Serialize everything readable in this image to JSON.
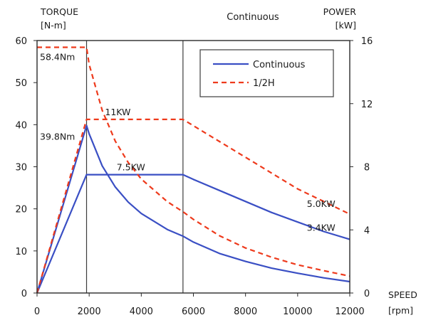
{
  "chart_data": {
    "type": "line",
    "title": "Continuous",
    "x_axis": {
      "label_line1": "SPEED",
      "label_line2": "[rpm]",
      "range": [
        0,
        12000
      ],
      "ticks": [
        "0",
        "2000",
        "4000",
        "6000",
        "8000",
        "10000",
        "12000"
      ],
      "tick_values": [
        0,
        2000,
        4000,
        6000,
        8000,
        10000,
        12000
      ]
    },
    "y_left": {
      "label_line1": "TORQUE",
      "label_line2": "[N-m]",
      "range": [
        0,
        60
      ],
      "ticks": [
        "0",
        "10",
        "20",
        "30",
        "40",
        "50",
        "60"
      ],
      "tick_values": [
        0,
        10,
        20,
        30,
        40,
        50,
        60
      ]
    },
    "y_right": {
      "label_line1": "POWER",
      "label_line2": "[kW]",
      "range": [
        0,
        16
      ],
      "ticks": [
        "0",
        "4",
        "8",
        "12",
        "16"
      ],
      "tick_values": [
        0,
        4,
        8,
        12,
        16
      ]
    },
    "grid": false,
    "legend": {
      "position": "top-right",
      "entries": [
        "Continuous",
        "1/2H"
      ]
    },
    "vertical_lines": [
      1900,
      5600
    ],
    "series": [
      {
        "name": "Continuous",
        "kind": "torque",
        "axis": "left",
        "color": "#3a4fc4",
        "dash": "solid",
        "points": [
          [
            0,
            0
          ],
          [
            1900,
            39.8
          ],
          [
            2000,
            37.8
          ],
          [
            2500,
            30.2
          ],
          [
            3000,
            25.2
          ],
          [
            3500,
            21.6
          ],
          [
            4000,
            18.9
          ],
          [
            5000,
            15.1
          ],
          [
            5600,
            13.5
          ],
          [
            6000,
            12.1
          ],
          [
            7000,
            9.4
          ],
          [
            8000,
            7.5
          ],
          [
            9000,
            5.9
          ],
          [
            10000,
            4.7
          ],
          [
            11000,
            3.6
          ],
          [
            12000,
            2.7
          ]
        ]
      },
      {
        "name": "Continuous",
        "kind": "power",
        "axis": "right",
        "color": "#3a4fc4",
        "dash": "solid",
        "points": [
          [
            0,
            0
          ],
          [
            1900,
            7.5
          ],
          [
            5600,
            7.5
          ],
          [
            6000,
            7.2
          ],
          [
            7000,
            6.5
          ],
          [
            8000,
            5.8
          ],
          [
            9000,
            5.1
          ],
          [
            10000,
            4.5
          ],
          [
            11000,
            3.9
          ],
          [
            12000,
            3.4
          ]
        ]
      },
      {
        "name": "1/2H",
        "kind": "torque",
        "axis": "left",
        "color": "#ee3a1c",
        "dash": "dashed",
        "points": [
          [
            0,
            58.4
          ],
          [
            1900,
            58.4
          ],
          [
            2000,
            54.3
          ],
          [
            2500,
            43.4
          ],
          [
            3000,
            36.1
          ],
          [
            3500,
            31.0
          ],
          [
            4000,
            27.1
          ],
          [
            5000,
            21.7
          ],
          [
            5600,
            19.3
          ],
          [
            6000,
            17.5
          ],
          [
            7000,
            13.6
          ],
          [
            8000,
            10.7
          ],
          [
            9000,
            8.5
          ],
          [
            10000,
            6.7
          ],
          [
            11000,
            5.3
          ],
          [
            12000,
            4.0
          ]
        ]
      },
      {
        "name": "1/2H",
        "kind": "power",
        "axis": "right",
        "color": "#ee3a1c",
        "dash": "dashed",
        "points": [
          [
            0,
            0
          ],
          [
            1900,
            11.0
          ],
          [
            5600,
            11.0
          ],
          [
            7000,
            9.6
          ],
          [
            8000,
            8.6
          ],
          [
            9000,
            7.6
          ],
          [
            10000,
            6.6
          ],
          [
            11000,
            5.8
          ],
          [
            12000,
            5.0
          ]
        ]
      }
    ],
    "annotations": [
      {
        "text": "58.4Nm",
        "x": 0,
        "y": 58.4,
        "axis": "left"
      },
      {
        "text": "39.8Nm",
        "x": 0,
        "y": 39.8,
        "axis": "left"
      },
      {
        "text": "11KW",
        "x": 3100,
        "y": 11.0,
        "axis": "right"
      },
      {
        "text": "7.5KW",
        "x": 3600,
        "y": 7.5,
        "axis": "right"
      },
      {
        "text": "5.0KW",
        "x": 10900,
        "y": 5.0,
        "axis": "right"
      },
      {
        "text": "3.4KW",
        "x": 10900,
        "y": 3.4,
        "axis": "right"
      }
    ]
  }
}
